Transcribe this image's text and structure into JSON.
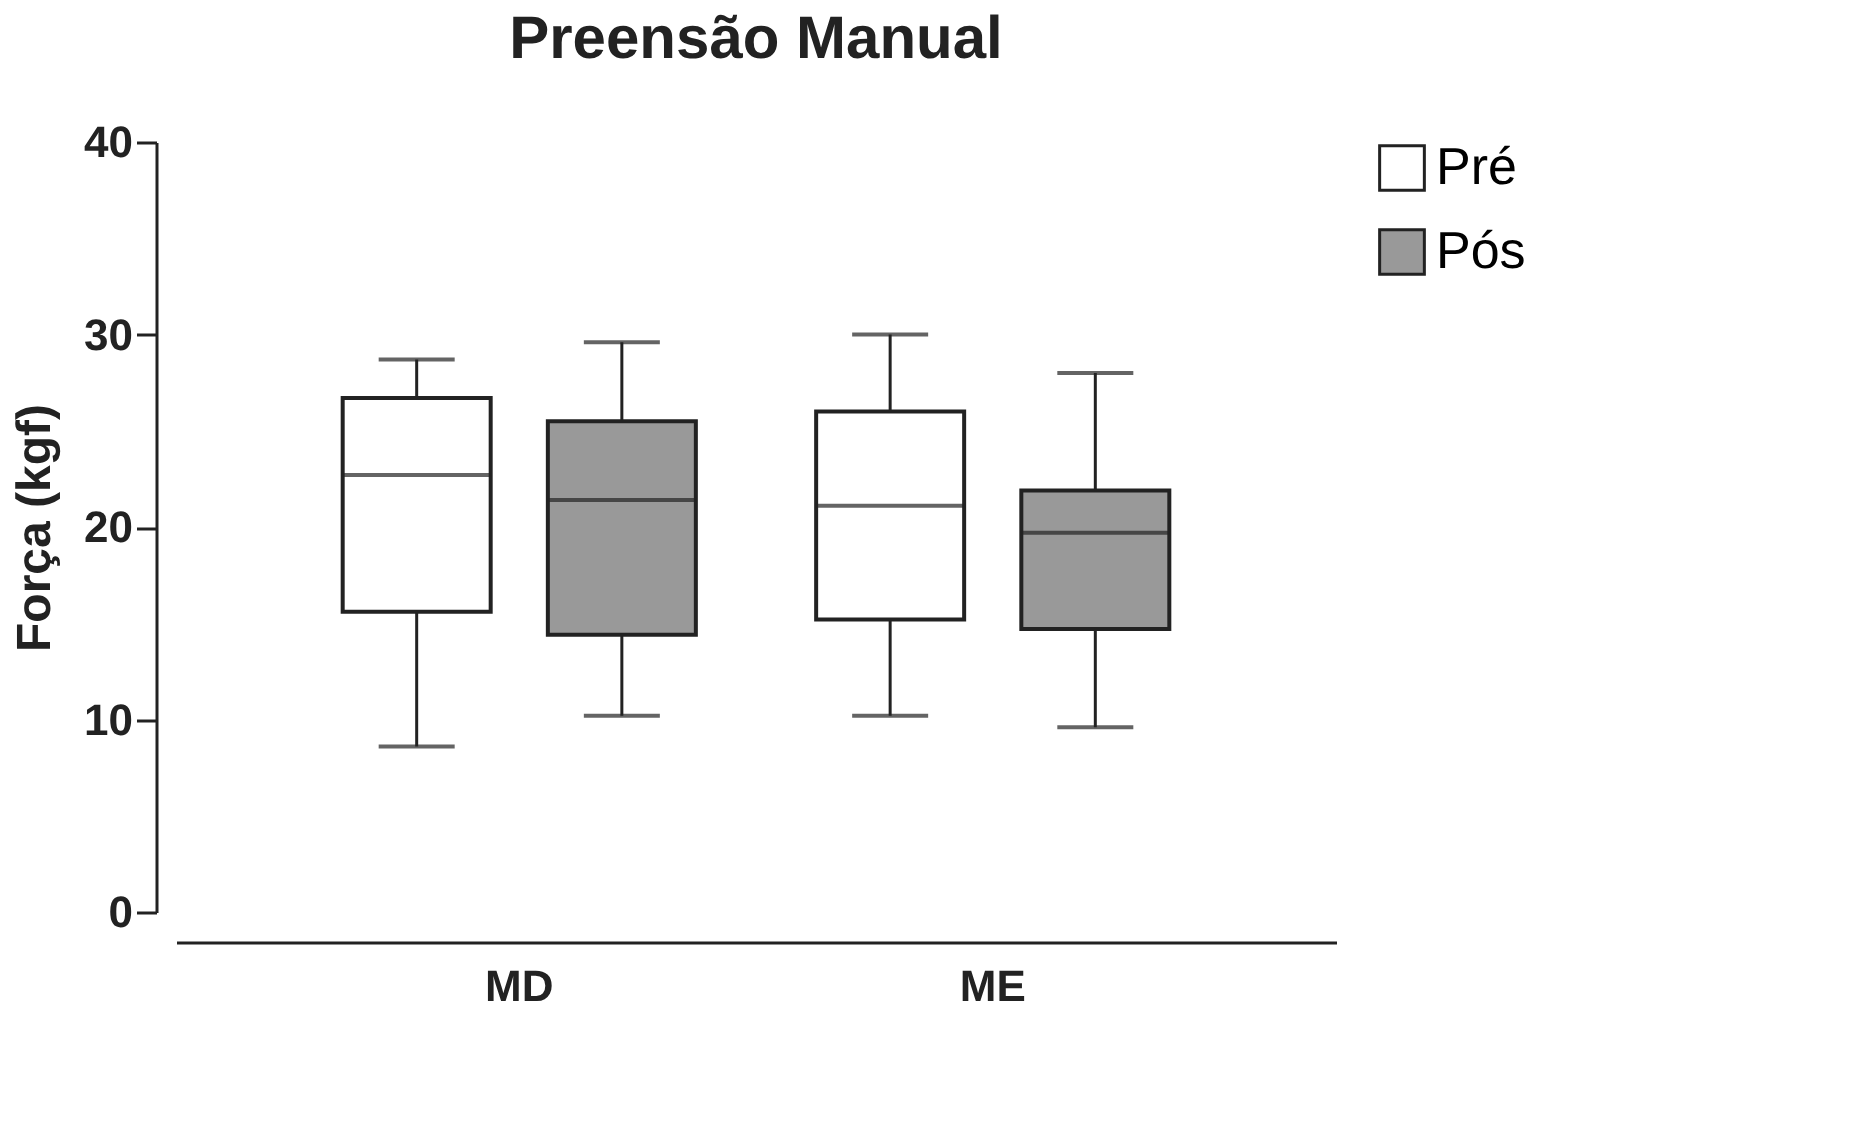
{
  "chart_data": {
    "type": "box",
    "title": "Preensão Manual",
    "ylabel": "Força (kgf)",
    "categories": [
      "MD",
      "ME"
    ],
    "ylim": [
      0,
      40
    ],
    "yticks": [
      0,
      10,
      20,
      30,
      40
    ],
    "grid": false,
    "legend": "top right",
    "series": [
      {
        "name": "Pré",
        "color": "#ffffff",
        "boxes": [
          {
            "low": 8.6,
            "q1": 15.6,
            "median": 22.7,
            "q3": 26.7,
            "high": 28.7
          },
          {
            "low": 10.2,
            "q1": 15.2,
            "median": 21.1,
            "q3": 26.0,
            "high": 30.0
          }
        ]
      },
      {
        "name": "Pós",
        "color": "#999999",
        "boxes": [
          {
            "low": 10.2,
            "q1": 14.4,
            "median": 21.4,
            "q3": 25.5,
            "high": 29.6
          },
          {
            "low": 9.6,
            "q1": 14.7,
            "median": 19.7,
            "q3": 21.9,
            "high": 28.0
          }
        ]
      }
    ]
  }
}
